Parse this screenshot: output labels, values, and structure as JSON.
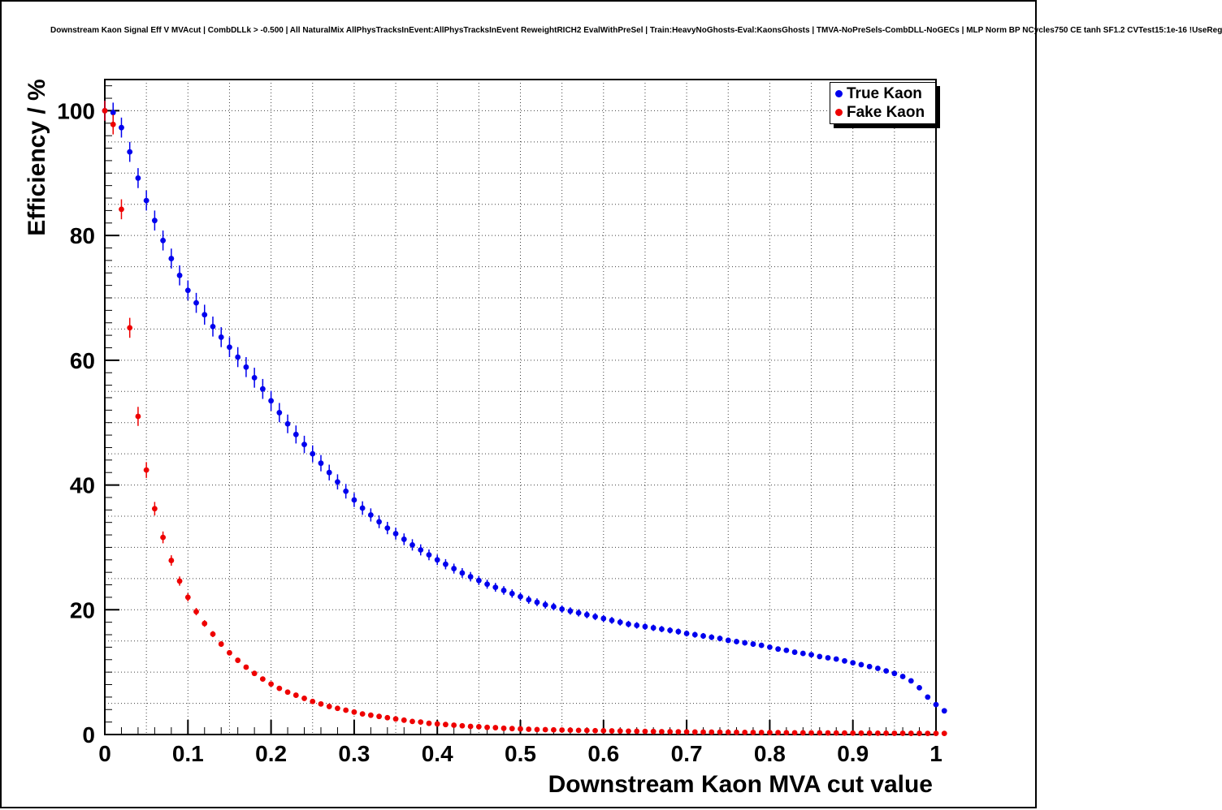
{
  "chart_data": {
    "type": "scatter",
    "title": "Downstream Kaon Signal Eff V MVAcut | CombDLLk > -0.500 | All NaturalMix AllPhysTracksInEvent:AllPhysTracksInEvent ReweightRICH2 EvalWithPreSel | Train:HeavyNoGhosts-Eval:KaonsGhosts | TMVA-NoPreSels-CombDLL-NoGECs | MLP Norm BP NCycles750 CE tanh SF1.2 CVTest15:1e-16 !UseReg",
    "xlabel": "Downstream Kaon MVA cut value",
    "ylabel": "Efficiency / %",
    "xlim": [
      0,
      1
    ],
    "ylim": [
      0,
      105
    ],
    "x_ticks": {
      "values": [
        0,
        0.1,
        0.2,
        0.3,
        0.4,
        0.5,
        0.6,
        0.7,
        0.8,
        0.9,
        1
      ],
      "labels": [
        "0",
        "0.1",
        "0.2",
        "0.3",
        "0.4",
        "0.5",
        "0.6",
        "0.7",
        "0.8",
        "0.9",
        "1"
      ]
    },
    "y_ticks": {
      "values": [
        0,
        20,
        40,
        60,
        80,
        100
      ],
      "labels": [
        "0",
        "20",
        "40",
        "60",
        "80",
        "100"
      ]
    },
    "x_minor_tick": 0.02,
    "y_minor_tick": 2,
    "grid": {
      "on": true,
      "x_spacing": 0.05,
      "y_spacing": 5,
      "style": "dotted"
    },
    "legend": {
      "position": "top-right"
    },
    "x_start": 0,
    "x_step": 0.01,
    "series": [
      {
        "name": "True Kaon",
        "color": "#0000ee",
        "marker": "circle",
        "values": [
          100,
          99.7,
          97.3,
          93.4,
          89.2,
          85.6,
          82.4,
          79.2,
          76.3,
          73.6,
          71.2,
          69.2,
          67.3,
          65.4,
          63.7,
          62.1,
          60.5,
          58.9,
          57.2,
          55.4,
          53.5,
          51.6,
          49.8,
          48.1,
          46.5,
          45.0,
          43.5,
          42.0,
          40.5,
          39.0,
          37.6,
          36.3,
          35.2,
          34.1,
          33.1,
          32.2,
          31.3,
          30.4,
          29.6,
          28.8,
          28.0,
          27.3,
          26.6,
          25.9,
          25.3,
          24.7,
          24.1,
          23.6,
          23.1,
          22.6,
          22.1,
          21.6,
          21.2,
          20.8,
          20.5,
          20.1,
          19.8,
          19.5,
          19.2,
          18.9,
          18.6,
          18.3,
          18.0,
          17.7,
          17.5,
          17.3,
          17.1,
          16.9,
          16.7,
          16.5,
          16.2,
          16.0,
          15.8,
          15.6,
          15.4,
          15.1,
          14.9,
          14.7,
          14.5,
          14.3,
          14.0,
          13.7,
          13.5,
          13.2,
          13.0,
          12.8,
          12.5,
          12.3,
          12.1,
          11.8,
          11.5,
          11.2,
          10.9,
          10.6,
          10.2,
          9.8,
          9.3,
          8.6,
          7.5,
          6.0,
          4.8,
          3.8
        ]
      },
      {
        "name": "Fake Kaon",
        "color": "#ee0000",
        "marker": "circle",
        "values": [
          100,
          97.8,
          84.2,
          65.2,
          51.0,
          42.4,
          36.2,
          31.6,
          27.9,
          24.6,
          22.0,
          19.7,
          17.8,
          16.1,
          14.5,
          13.1,
          11.9,
          10.8,
          9.8,
          8.9,
          8.1,
          7.4,
          6.8,
          6.3,
          5.8,
          5.3,
          4.9,
          4.5,
          4.2,
          3.9,
          3.6,
          3.3,
          3.1,
          2.9,
          2.7,
          2.5,
          2.3,
          2.1,
          2.0,
          1.8,
          1.7,
          1.6,
          1.5,
          1.4,
          1.3,
          1.25,
          1.15,
          1.1,
          1.0,
          0.95,
          0.9,
          0.85,
          0.8,
          0.78,
          0.75,
          0.72,
          0.7,
          0.67,
          0.65,
          0.62,
          0.6,
          0.58,
          0.56,
          0.54,
          0.52,
          0.5,
          0.48,
          0.46,
          0.45,
          0.43,
          0.42,
          0.4,
          0.39,
          0.38,
          0.37,
          0.36,
          0.35,
          0.34,
          0.33,
          0.32,
          0.31,
          0.3,
          0.29,
          0.28,
          0.27,
          0.26,
          0.26,
          0.25,
          0.24,
          0.24,
          0.23,
          0.22,
          0.22,
          0.21,
          0.21,
          0.2,
          0.2,
          0.19,
          0.19,
          0.18,
          0.18,
          0.18
        ]
      }
    ]
  }
}
